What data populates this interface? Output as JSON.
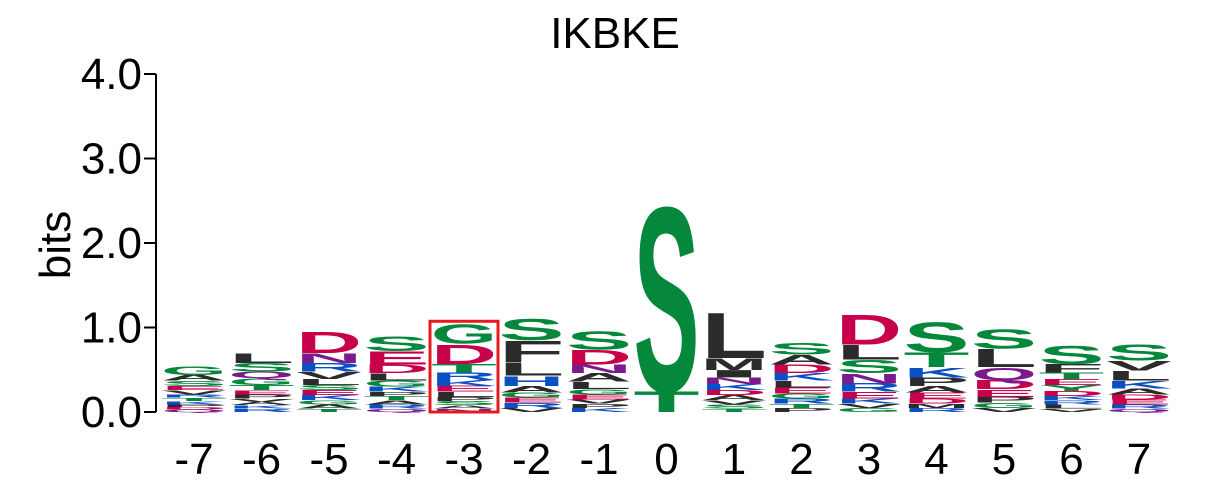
{
  "chart_data": {
    "type": "sequence-logo",
    "title": "IKBKE",
    "ylabel": "bits",
    "ylim": [
      0,
      4
    ],
    "yticks": [
      "0.0",
      "1.0",
      "2.0",
      "3.0",
      "4.0"
    ],
    "highlight_position": "-3",
    "highlight_color": "#e41a1c",
    "colors": {
      "acidic": "#c8004b",
      "polar": "#05873c",
      "hydrophobic": "#2b2b2b",
      "basic": "#0a4fc4",
      "amide": "#7a1a8c"
    },
    "positions": [
      {
        "label": "-7",
        "residues": [
          {
            "aa": "G",
            "bits": 0.1,
            "color": "#05873c"
          },
          {
            "aa": "A",
            "bits": 0.07,
            "color": "#2b2b2b"
          },
          {
            "aa": "S",
            "bits": 0.06,
            "color": "#05873c"
          },
          {
            "aa": "V",
            "bits": 0.05,
            "color": "#2b2b2b"
          },
          {
            "aa": "E",
            "bits": 0.05,
            "color": "#c8004b"
          },
          {
            "aa": "K",
            "bits": 0.04,
            "color": "#0a4fc4"
          },
          {
            "aa": "T",
            "bits": 0.04,
            "color": "#05873c"
          },
          {
            "aa": "R",
            "bits": 0.04,
            "color": "#0a4fc4"
          },
          {
            "aa": "Q",
            "bits": 0.03,
            "color": "#7a1a8c"
          },
          {
            "aa": "D",
            "bits": 0.03,
            "color": "#c8004b"
          },
          {
            "aa": "P",
            "bits": 0.03,
            "color": "#2b2b2b"
          }
        ]
      },
      {
        "label": "-6",
        "residues": [
          {
            "aa": "L",
            "bits": 0.12,
            "color": "#2b2b2b"
          },
          {
            "aa": "S",
            "bits": 0.1,
            "color": "#05873c"
          },
          {
            "aa": "G",
            "bits": 0.08,
            "color": "#05873c"
          },
          {
            "aa": "Q",
            "bits": 0.08,
            "color": "#7a1a8c"
          },
          {
            "aa": "T",
            "bits": 0.06,
            "color": "#05873c"
          },
          {
            "aa": "P",
            "bits": 0.05,
            "color": "#2b2b2b"
          },
          {
            "aa": "E",
            "bits": 0.05,
            "color": "#c8004b"
          },
          {
            "aa": "R",
            "bits": 0.04,
            "color": "#0a4fc4"
          },
          {
            "aa": "K",
            "bits": 0.04,
            "color": "#0a4fc4"
          },
          {
            "aa": "A",
            "bits": 0.04,
            "color": "#2b2b2b"
          },
          {
            "aa": "V",
            "bits": 0.04,
            "color": "#2b2b2b"
          }
        ]
      },
      {
        "label": "-5",
        "residues": [
          {
            "aa": "D",
            "bits": 0.26,
            "color": "#c8004b"
          },
          {
            "aa": "N",
            "bits": 0.12,
            "color": "#7a1a8c"
          },
          {
            "aa": "R",
            "bits": 0.1,
            "color": "#0a4fc4"
          },
          {
            "aa": "V",
            "bits": 0.09,
            "color": "#2b2b2b"
          },
          {
            "aa": "L",
            "bits": 0.07,
            "color": "#2b2b2b"
          },
          {
            "aa": "K",
            "bits": 0.06,
            "color": "#0a4fc4"
          },
          {
            "aa": "E",
            "bits": 0.06,
            "color": "#c8004b"
          },
          {
            "aa": "S",
            "bits": 0.06,
            "color": "#05873c"
          },
          {
            "aa": "A",
            "bits": 0.05,
            "color": "#2b2b2b"
          },
          {
            "aa": "G",
            "bits": 0.05,
            "color": "#05873c"
          },
          {
            "aa": "T",
            "bits": 0.04,
            "color": "#05873c"
          }
        ]
      },
      {
        "label": "-4",
        "residues": [
          {
            "aa": "S",
            "bits": 0.18,
            "color": "#05873c"
          },
          {
            "aa": "E",
            "bits": 0.16,
            "color": "#c8004b"
          },
          {
            "aa": "D",
            "bits": 0.1,
            "color": "#c8004b"
          },
          {
            "aa": "L",
            "bits": 0.09,
            "color": "#2b2b2b"
          },
          {
            "aa": "G",
            "bits": 0.07,
            "color": "#05873c"
          },
          {
            "aa": "K",
            "bits": 0.06,
            "color": "#0a4fc4"
          },
          {
            "aa": "R",
            "bits": 0.05,
            "color": "#0a4fc4"
          },
          {
            "aa": "A",
            "bits": 0.05,
            "color": "#2b2b2b"
          },
          {
            "aa": "T",
            "bits": 0.05,
            "color": "#05873c"
          },
          {
            "aa": "P",
            "bits": 0.05,
            "color": "#2b2b2b"
          },
          {
            "aa": "Q",
            "bits": 0.04,
            "color": "#7a1a8c"
          }
        ]
      },
      {
        "label": "-3",
        "residues": [
          {
            "aa": "D",
            "bits": 0.24,
            "color": "#c8004b"
          },
          {
            "aa": "G",
            "bits": 0.24,
            "color": "#05873c"
          },
          {
            "aa": "T",
            "bits": 0.1,
            "color": "#05873c"
          },
          {
            "aa": "R",
            "bits": 0.09,
            "color": "#0a4fc4"
          },
          {
            "aa": "E",
            "bits": 0.07,
            "color": "#c8004b"
          },
          {
            "aa": "K",
            "bits": 0.07,
            "color": "#0a4fc4"
          },
          {
            "aa": "L",
            "bits": 0.06,
            "color": "#2b2b2b"
          },
          {
            "aa": "S",
            "bits": 0.05,
            "color": "#05873c"
          },
          {
            "aa": "P",
            "bits": 0.05,
            "color": "#2b2b2b"
          },
          {
            "aa": "N",
            "bits": 0.04,
            "color": "#7a1a8c"
          },
          {
            "aa": "A",
            "bits": 0.04,
            "color": "#2b2b2b"
          }
        ]
      },
      {
        "label": "-2",
        "residues": [
          {
            "aa": "F",
            "bits": 0.26,
            "color": "#2b2b2b"
          },
          {
            "aa": "S",
            "bits": 0.26,
            "color": "#05873c"
          },
          {
            "aa": "L",
            "bits": 0.16,
            "color": "#2b2b2b"
          },
          {
            "aa": "H",
            "bits": 0.12,
            "color": "#0a4fc4"
          },
          {
            "aa": "A",
            "bits": 0.08,
            "color": "#2b2b2b"
          },
          {
            "aa": "R",
            "bits": 0.06,
            "color": "#0a4fc4"
          },
          {
            "aa": "E",
            "bits": 0.06,
            "color": "#c8004b"
          },
          {
            "aa": "G",
            "bits": 0.06,
            "color": "#05873c"
          },
          {
            "aa": "V",
            "bits": 0.05,
            "color": "#2b2b2b"
          }
        ]
      },
      {
        "label": "-1",
        "residues": [
          {
            "aa": "S",
            "bits": 0.22,
            "color": "#05873c"
          },
          {
            "aa": "D",
            "bits": 0.18,
            "color": "#c8004b"
          },
          {
            "aa": "A",
            "bits": 0.1,
            "color": "#2b2b2b"
          },
          {
            "aa": "L",
            "bits": 0.09,
            "color": "#2b2b2b"
          },
          {
            "aa": "N",
            "bits": 0.1,
            "color": "#7a1a8c"
          },
          {
            "aa": "E",
            "bits": 0.06,
            "color": "#c8004b"
          },
          {
            "aa": "G",
            "bits": 0.06,
            "color": "#05873c"
          },
          {
            "aa": "K",
            "bits": 0.05,
            "color": "#0a4fc4"
          },
          {
            "aa": "P",
            "bits": 0.05,
            "color": "#2b2b2b"
          },
          {
            "aa": "V",
            "bits": 0.05,
            "color": "#2b2b2b"
          }
        ]
      },
      {
        "label": "0",
        "residues": [
          {
            "aa": "S",
            "bits": 2.25,
            "color": "#05873c"
          },
          {
            "aa": "T",
            "bits": 0.25,
            "color": "#05873c"
          }
        ]
      },
      {
        "label": "1",
        "residues": [
          {
            "aa": "L",
            "bits": 0.55,
            "color": "#2b2b2b"
          },
          {
            "aa": "I",
            "bits": 0.09,
            "color": "#2b2b2b"
          },
          {
            "aa": "M",
            "bits": 0.14,
            "color": "#2b2b2b"
          },
          {
            "aa": "N",
            "bits": 0.08,
            "color": "#7a1a8c"
          },
          {
            "aa": "K",
            "bits": 0.07,
            "color": "#0a4fc4"
          },
          {
            "aa": "A",
            "bits": 0.06,
            "color": "#2b2b2b"
          },
          {
            "aa": "D",
            "bits": 0.06,
            "color": "#c8004b"
          },
          {
            "aa": "S",
            "bits": 0.05,
            "color": "#05873c"
          },
          {
            "aa": "V",
            "bits": 0.05,
            "color": "#2b2b2b"
          },
          {
            "aa": "T",
            "bits": 0.04,
            "color": "#05873c"
          }
        ]
      },
      {
        "label": "2",
        "residues": [
          {
            "aa": "S",
            "bits": 0.14,
            "color": "#05873c"
          },
          {
            "aa": "A",
            "bits": 0.12,
            "color": "#2b2b2b"
          },
          {
            "aa": "D",
            "bits": 0.1,
            "color": "#c8004b"
          },
          {
            "aa": "K",
            "bits": 0.09,
            "color": "#0a4fc4"
          },
          {
            "aa": "L",
            "bits": 0.08,
            "color": "#2b2b2b"
          },
          {
            "aa": "E",
            "bits": 0.07,
            "color": "#c8004b"
          },
          {
            "aa": "R",
            "bits": 0.06,
            "color": "#0a4fc4"
          },
          {
            "aa": "G",
            "bits": 0.06,
            "color": "#05873c"
          },
          {
            "aa": "P",
            "bits": 0.05,
            "color": "#2b2b2b"
          },
          {
            "aa": "T",
            "bits": 0.05,
            "color": "#05873c"
          }
        ]
      },
      {
        "label": "3",
        "residues": [
          {
            "aa": "D",
            "bits": 0.36,
            "color": "#c8004b"
          },
          {
            "aa": "L",
            "bits": 0.18,
            "color": "#2b2b2b"
          },
          {
            "aa": "S",
            "bits": 0.16,
            "color": "#05873c"
          },
          {
            "aa": "N",
            "bits": 0.12,
            "color": "#7a1a8c"
          },
          {
            "aa": "R",
            "bits": 0.1,
            "color": "#0a4fc4"
          },
          {
            "aa": "E",
            "bits": 0.08,
            "color": "#c8004b"
          },
          {
            "aa": "K",
            "bits": 0.06,
            "color": "#0a4fc4"
          },
          {
            "aa": "G",
            "bits": 0.05,
            "color": "#05873c"
          },
          {
            "aa": "V",
            "bits": 0.05,
            "color": "#2b2b2b"
          }
        ]
      },
      {
        "label": "4",
        "residues": [
          {
            "aa": "S",
            "bits": 0.36,
            "color": "#05873c"
          },
          {
            "aa": "T",
            "bits": 0.18,
            "color": "#05873c"
          },
          {
            "aa": "K",
            "bits": 0.12,
            "color": "#0a4fc4"
          },
          {
            "aa": "P",
            "bits": 0.1,
            "color": "#2b2b2b"
          },
          {
            "aa": "A",
            "bits": 0.08,
            "color": "#2b2b2b"
          },
          {
            "aa": "E",
            "bits": 0.07,
            "color": "#c8004b"
          },
          {
            "aa": "D",
            "bits": 0.06,
            "color": "#c8004b"
          },
          {
            "aa": "R",
            "bits": 0.05,
            "color": "#0a4fc4"
          },
          {
            "aa": "M",
            "bits": 0.05,
            "color": "#2b2b2b"
          }
        ]
      },
      {
        "label": "5",
        "residues": [
          {
            "aa": "L",
            "bits": 0.22,
            "color": "#2b2b2b"
          },
          {
            "aa": "S",
            "bits": 0.24,
            "color": "#05873c"
          },
          {
            "aa": "Q",
            "bits": 0.15,
            "color": "#7a1a8c"
          },
          {
            "aa": "D",
            "bits": 0.11,
            "color": "#c8004b"
          },
          {
            "aa": "E",
            "bits": 0.09,
            "color": "#c8004b"
          },
          {
            "aa": "P",
            "bits": 0.07,
            "color": "#2b2b2b"
          },
          {
            "aa": "G",
            "bits": 0.06,
            "color": "#05873c"
          },
          {
            "aa": "V",
            "bits": 0.05,
            "color": "#2b2b2b"
          }
        ]
      },
      {
        "label": "6",
        "residues": [
          {
            "aa": "S",
            "bits": 0.22,
            "color": "#05873c"
          },
          {
            "aa": "F",
            "bits": 0.1,
            "color": "#2b2b2b"
          },
          {
            "aa": "T",
            "bits": 0.08,
            "color": "#05873c"
          },
          {
            "aa": "Y",
            "bits": 0.07,
            "color": "#05873c"
          },
          {
            "aa": "E",
            "bits": 0.07,
            "color": "#c8004b"
          },
          {
            "aa": "D",
            "bits": 0.06,
            "color": "#c8004b"
          },
          {
            "aa": "L",
            "bits": 0.05,
            "color": "#2b2b2b"
          },
          {
            "aa": "R",
            "bits": 0.05,
            "color": "#0a4fc4"
          },
          {
            "aa": "K",
            "bits": 0.05,
            "color": "#0a4fc4"
          },
          {
            "aa": "V",
            "bits": 0.04,
            "color": "#2b2b2b"
          }
        ]
      },
      {
        "label": "7",
        "residues": [
          {
            "aa": "S",
            "bits": 0.2,
            "color": "#05873c"
          },
          {
            "aa": "L",
            "bits": 0.12,
            "color": "#2b2b2b"
          },
          {
            "aa": "V",
            "bits": 0.12,
            "color": "#2b2b2b"
          },
          {
            "aa": "K",
            "bits": 0.09,
            "color": "#0a4fc4"
          },
          {
            "aa": "A",
            "bits": 0.07,
            "color": "#2b2b2b"
          },
          {
            "aa": "E",
            "bits": 0.06,
            "color": "#c8004b"
          },
          {
            "aa": "D",
            "bits": 0.06,
            "color": "#c8004b"
          },
          {
            "aa": "R",
            "bits": 0.05,
            "color": "#0a4fc4"
          },
          {
            "aa": "Q",
            "bits": 0.04,
            "color": "#7a1a8c"
          }
        ]
      }
    ]
  }
}
